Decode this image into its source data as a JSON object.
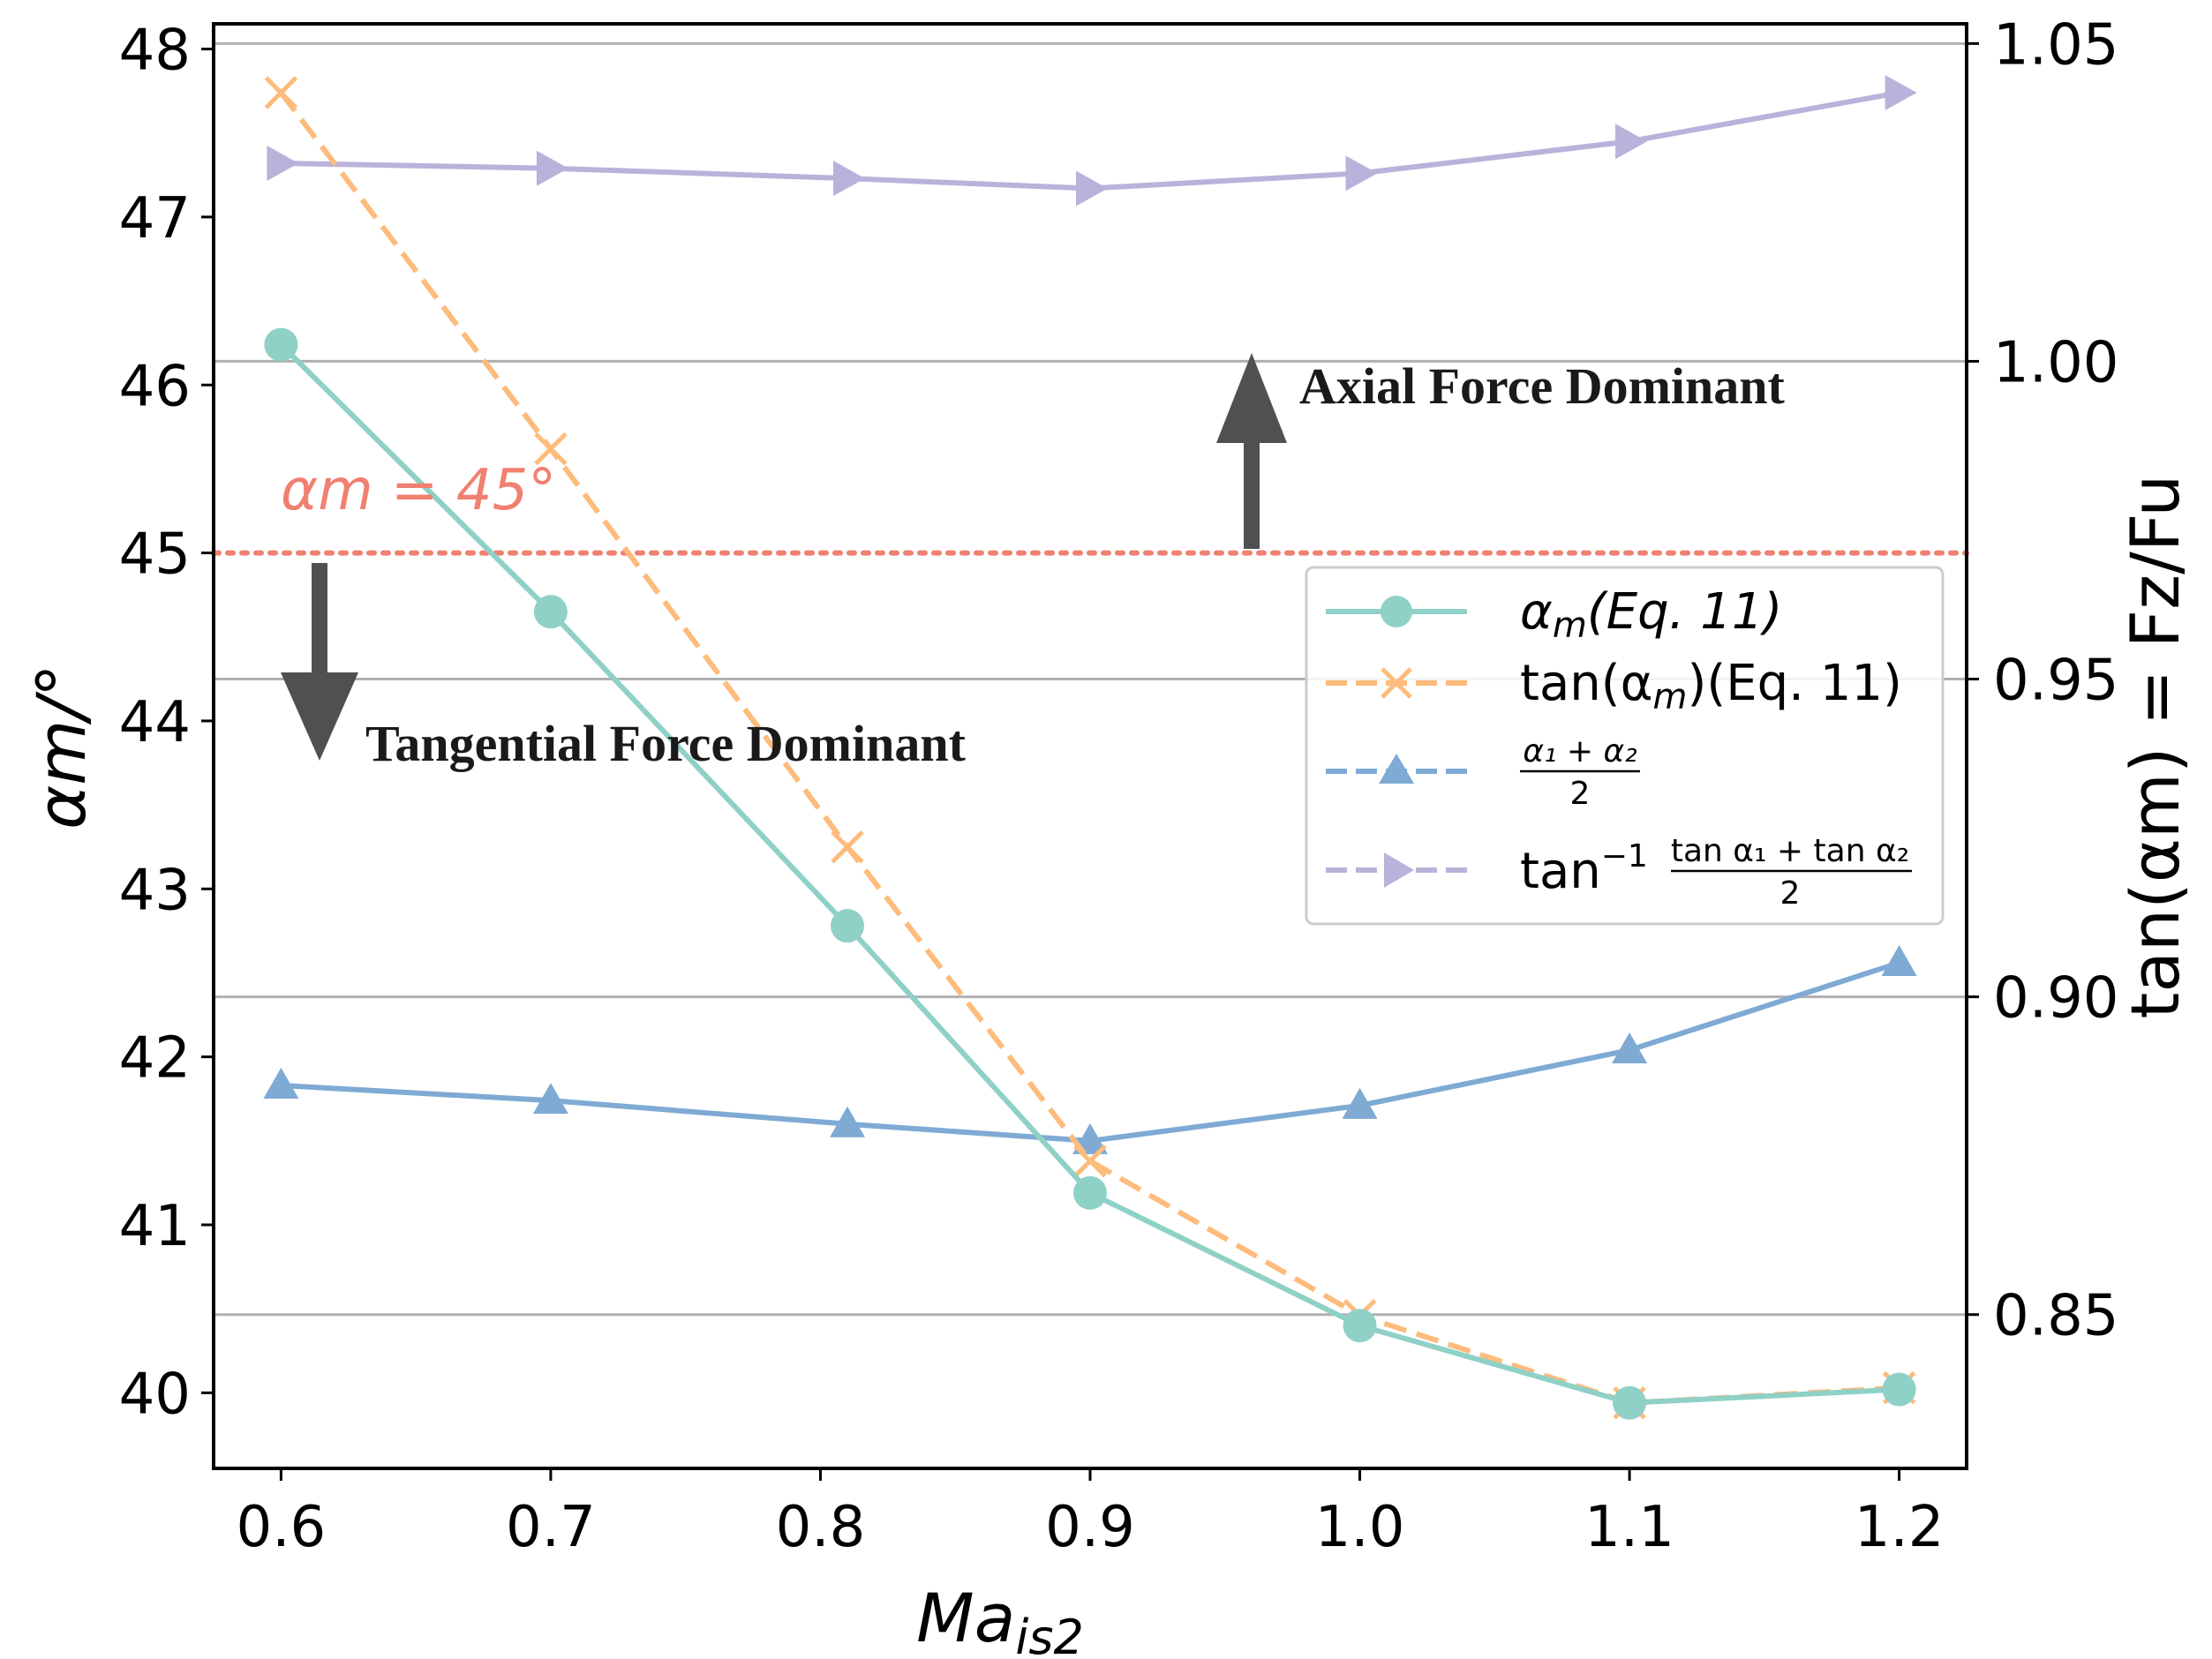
{
  "chart_data": {
    "type": "line",
    "x": [
      0.6,
      0.7,
      0.81,
      0.9,
      1.0,
      1.1,
      1.2
    ],
    "xlabel_base": "Ma",
    "xlabel_sub": "is2",
    "ylabel_left": "αm/°",
    "ylabel_right": "tan(αm) = Fz/Fu",
    "xlim": [
      0.575,
      1.225
    ],
    "ylim_left": [
      39.55,
      48.15
    ],
    "ylim_right": [
      0.8258,
      1.0531
    ],
    "xticks": [
      "0.6",
      "0.7",
      "0.8",
      "0.9",
      "1.0",
      "1.1",
      "1.2"
    ],
    "xtick_values": [
      0.6,
      0.7,
      0.8,
      0.9,
      1.0,
      1.1,
      1.2
    ],
    "yticks_left": [
      "40",
      "41",
      "42",
      "43",
      "44",
      "45",
      "46",
      "47",
      "48"
    ],
    "ytick_values_left": [
      40,
      41,
      42,
      43,
      44,
      45,
      46,
      47,
      48
    ],
    "yticks_right": [
      "0.85",
      "0.90",
      "0.95",
      "1.00",
      "1.05"
    ],
    "ytick_values_right": [
      0.85,
      0.9,
      0.95,
      1.0,
      1.05
    ],
    "series": [
      {
        "name": "αm(Eq. 11)",
        "axis": "left",
        "style": "solid",
        "marker": "circle",
        "color": "#8fd0c7",
        "values": [
          46.24,
          44.65,
          42.78,
          41.19,
          40.4,
          39.94,
          40.02
        ]
      },
      {
        "name": "tan(αm)(Eq. 11)",
        "axis": "left",
        "style": "dashed",
        "marker": "x",
        "color": "#fdbb7c",
        "values": [
          47.74,
          45.62,
          43.25,
          41.38,
          40.46,
          39.94,
          40.03
        ]
      },
      {
        "name": "(α1 + α2)/2",
        "axis": "left",
        "style": "dashed",
        "marker": "triangle-up",
        "color": "#7eaad4",
        "values": [
          41.83,
          41.74,
          41.6,
          41.5,
          41.71,
          42.04,
          42.56
        ]
      },
      {
        "name": "tan⁻¹ (tan α1 + tan α2)/2",
        "axis": "left",
        "style": "dashed",
        "marker": "triangle-right",
        "color": "#b9b2da",
        "values": [
          47.32,
          47.29,
          47.23,
          47.17,
          47.26,
          47.45,
          47.74
        ]
      }
    ],
    "reference_line": {
      "value": 45,
      "label": "αm = 45°",
      "color": "#f08070"
    },
    "annotations": [
      {
        "text": "Axial Force Dominant",
        "arrow": "up"
      },
      {
        "text": "Tangential Force Dominant",
        "arrow": "down"
      }
    ],
    "legend_position": "center-right",
    "grid": "right-axis horizontal"
  },
  "legend": {
    "items": [
      {
        "base": "α",
        "sub": "m",
        "tail": "(Eq. 11)"
      },
      {
        "prefix": "tan(α",
        "sub": "m",
        "tail": ")(Eq. 11)"
      },
      {
        "numerator": "α₁ + α₂",
        "denominator": "2"
      },
      {
        "prefix": "tan",
        "sup": "−1",
        "numerator": "tan α₁ + tan α₂",
        "denominator": "2"
      }
    ]
  },
  "colors": {
    "axis": "#000000",
    "grid": "#b0b0b0",
    "arrow": "#505050"
  }
}
